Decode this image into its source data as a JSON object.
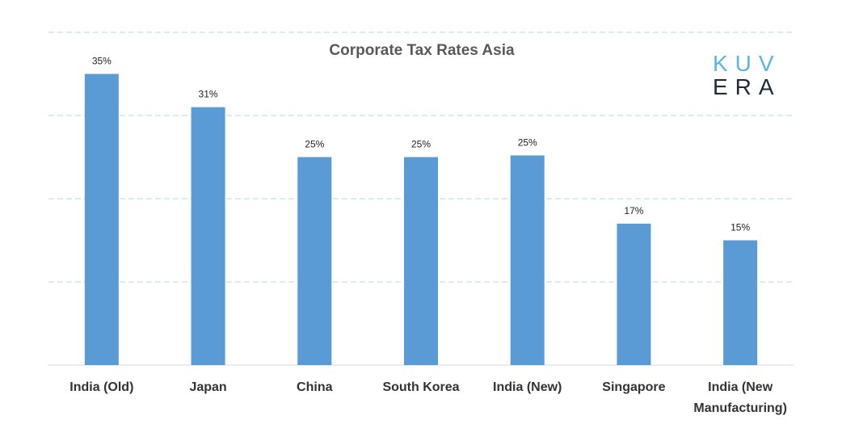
{
  "logo": {
    "line1": "KUV",
    "line2": "ERA"
  },
  "chart_data": {
    "type": "bar",
    "title": "Corporate Tax Rates Asia",
    "xlabel": "",
    "ylabel": "",
    "ylim": [
      0,
      40
    ],
    "grid": true,
    "categories": [
      [
        "India (Old)"
      ],
      [
        "Japan"
      ],
      [
        "China"
      ],
      [
        "South Korea"
      ],
      [
        "India (New)"
      ],
      [
        "Singapore"
      ],
      [
        "India (New",
        "Manufacturing)"
      ]
    ],
    "values": [
      35,
      31,
      25,
      25,
      25.2,
      17,
      15
    ],
    "data_labels": [
      "35%",
      "31%",
      "25%",
      "25%",
      "25%",
      "17%",
      "15%"
    ],
    "bar_color": "#5b9bd5"
  }
}
